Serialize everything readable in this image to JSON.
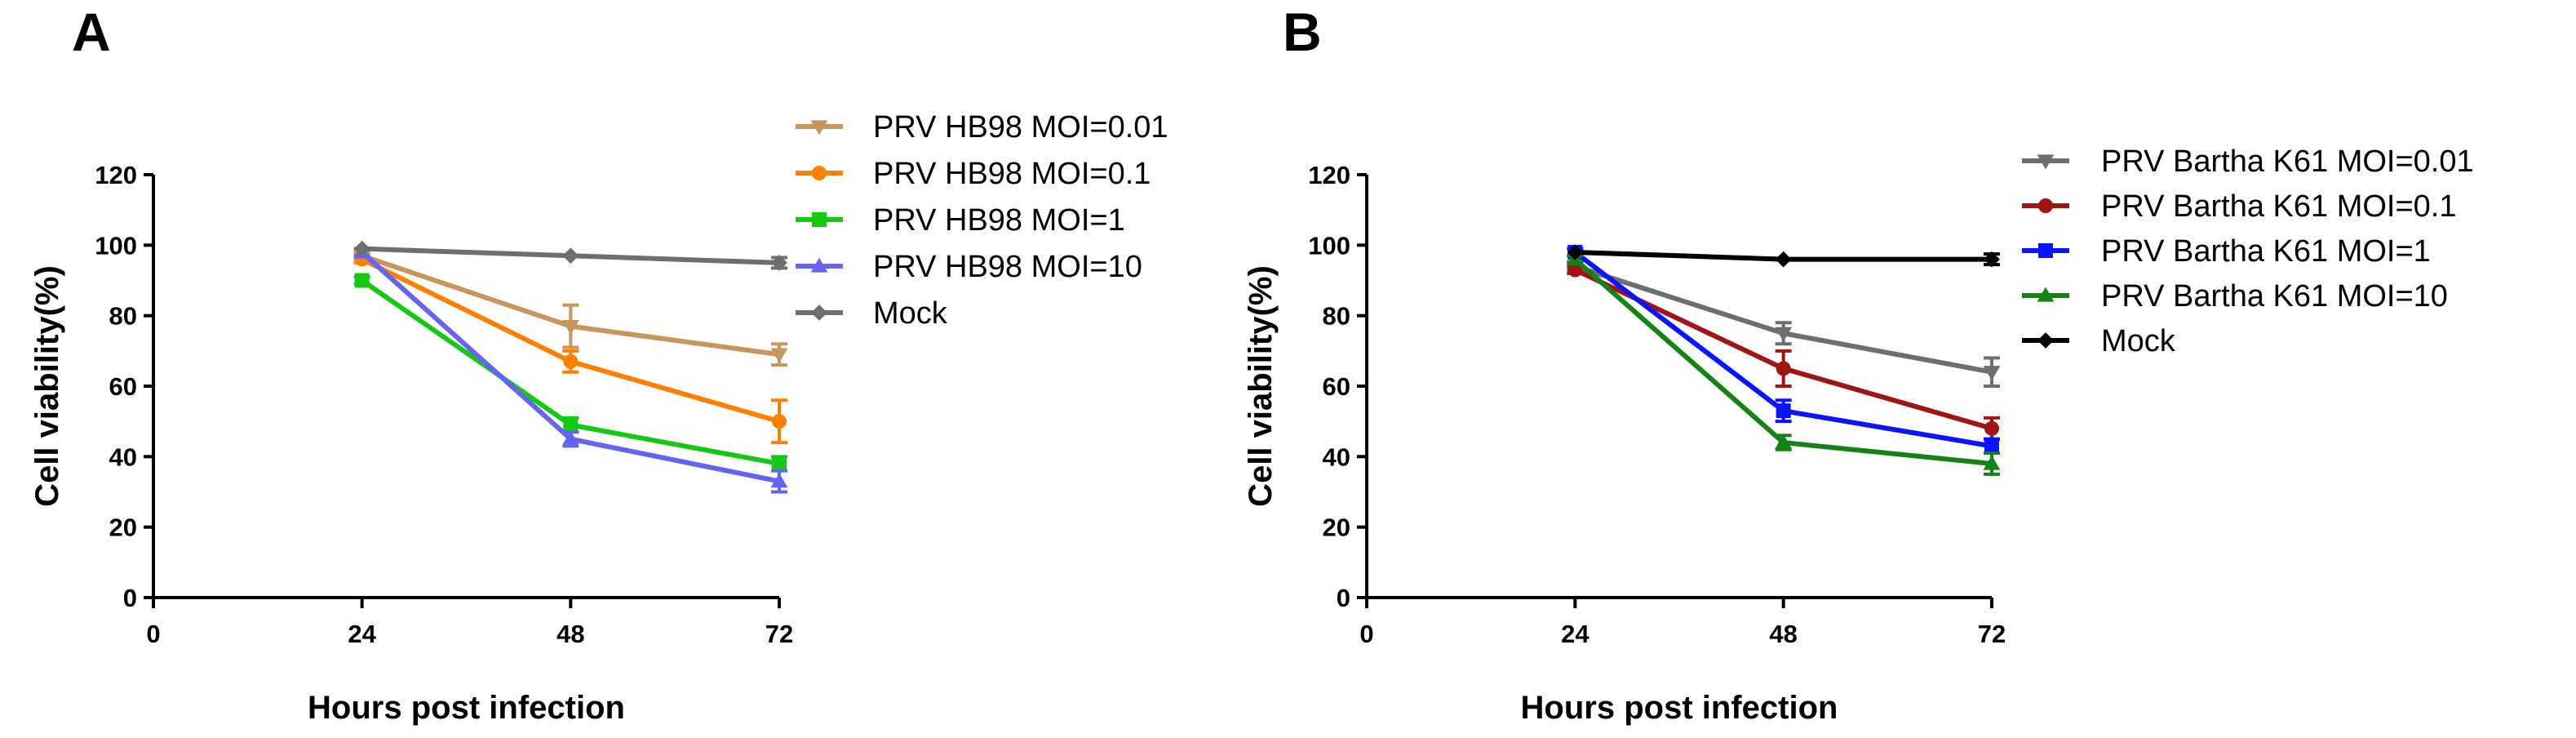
{
  "chart_data": [
    {
      "panel_label": "A",
      "type": "line",
      "xlabel": "Hours post infection",
      "ylabel": "Cell viability(%)",
      "x": [
        24,
        48,
        72
      ],
      "xlim": [
        0,
        72
      ],
      "ylim": [
        0,
        120
      ],
      "xticks": [
        0,
        24,
        48,
        72
      ],
      "yticks": [
        0,
        20,
        40,
        60,
        80,
        100,
        120
      ],
      "legend_position": "right",
      "grid": false,
      "series": [
        {
          "name": "PRV HB98 MOI=0.01",
          "color": "#c8965a",
          "marker": "triangle-down",
          "values": [
            97,
            77,
            69
          ],
          "errors": [
            1,
            6,
            3
          ]
        },
        {
          "name": "PRV HB98 MOI=0.1",
          "color": "#ff8000",
          "marker": "circle",
          "values": [
            96,
            67,
            50
          ],
          "errors": [
            1,
            3,
            6
          ]
        },
        {
          "name": "PRV HB98 MOI=1",
          "color": "#14c814",
          "marker": "square",
          "values": [
            90,
            49,
            38
          ],
          "errors": [
            1,
            2,
            2
          ]
        },
        {
          "name": "PRV HB98 MOI=10",
          "color": "#6464f0",
          "marker": "triangle-up",
          "values": [
            98,
            45,
            33
          ],
          "errors": [
            1,
            2,
            3
          ]
        },
        {
          "name": "Mock",
          "color": "#6e6e6e",
          "marker": "diamond",
          "values": [
            99,
            97,
            95
          ],
          "errors": [
            0.5,
            0.5,
            1.5
          ]
        }
      ]
    },
    {
      "panel_label": "B",
      "type": "line",
      "xlabel": "Hours post infection",
      "ylabel": "Cell viability(%)",
      "x": [
        24,
        48,
        72
      ],
      "xlim": [
        0,
        72
      ],
      "ylim": [
        0,
        120
      ],
      "xticks": [
        0,
        24,
        48,
        72
      ],
      "yticks": [
        0,
        20,
        40,
        60,
        80,
        100,
        120
      ],
      "legend_position": "right",
      "grid": false,
      "series": [
        {
          "name": "PRV Bartha K61 MOI=0.01",
          "color": "#6e6e6e",
          "marker": "triangle-down",
          "values": [
            94,
            75,
            64
          ],
          "errors": [
            1,
            3,
            4
          ]
        },
        {
          "name": "PRV Bartha K61 MOI=0.1",
          "color": "#a01414",
          "marker": "circle",
          "values": [
            93,
            65,
            48
          ],
          "errors": [
            1,
            5,
            3
          ]
        },
        {
          "name": "PRV Bartha K61 MOI=1",
          "color": "#0a14ff",
          "marker": "square",
          "values": [
            98,
            53,
            43
          ],
          "errors": [
            1,
            3,
            2
          ]
        },
        {
          "name": "PRV Bartha K61 MOI=10",
          "color": "#148214",
          "marker": "triangle-up",
          "values": [
            96,
            44,
            38
          ],
          "errors": [
            1,
            2,
            3
          ]
        },
        {
          "name": "Mock",
          "color": "#000000",
          "marker": "diamond",
          "values": [
            98,
            96,
            96
          ],
          "errors": [
            0.5,
            0.5,
            1.5
          ]
        }
      ]
    }
  ]
}
